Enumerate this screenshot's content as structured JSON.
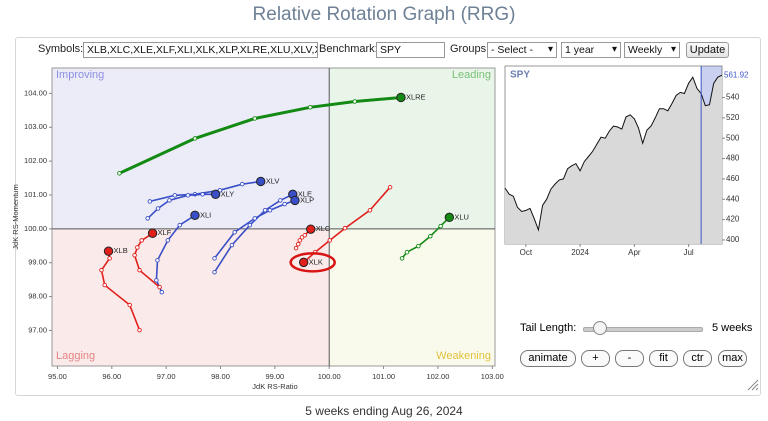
{
  "header": {
    "title": "Relative Rotation Graph (RRG)"
  },
  "controls": {
    "symbols_label": "Symbols:",
    "symbols": "XLB,XLC,XLE,XLF,XLI,XLK,XLP,XLRE,XLU,XLV,XLY",
    "benchmark_label": "Benchmark:",
    "benchmark": "SPY",
    "groups_label": "Groups:",
    "groups": "- Select -",
    "period": "1 year",
    "frequency": "Weekly",
    "update": "Update",
    "tail_length_label": "Tail Length:",
    "tail_length": "5 weeks",
    "buttons": [
      "animate",
      "+",
      "-",
      "fit",
      "ctr",
      "max"
    ]
  },
  "chart_data": [
    {
      "type": "rrg",
      "xlabel": "JdK RS-Ratio",
      "ylabel": "JdK RS-Momentum",
      "xlim": [
        94.9,
        103.05
      ],
      "ylim": [
        95.95,
        104.75
      ],
      "xticks": [
        {
          "value": 95,
          "label": "95.00"
        },
        {
          "value": 96,
          "label": "96.00"
        },
        {
          "value": 97,
          "label": "97.00"
        },
        {
          "value": 98,
          "label": "98.00"
        },
        {
          "value": 99,
          "label": "99.00"
        },
        {
          "value": 100,
          "label": "100.00"
        },
        {
          "value": 101,
          "label": "101.00"
        },
        {
          "value": 102,
          "label": "102.00"
        },
        {
          "value": 103,
          "label": "103.00"
        }
      ],
      "yticks": [
        {
          "value": 97,
          "label": "97.00"
        },
        {
          "value": 98,
          "label": "98.00"
        },
        {
          "value": 99,
          "label": "99.00"
        },
        {
          "value": 100,
          "label": "100.00"
        },
        {
          "value": 101,
          "label": "101.00"
        },
        {
          "value": 102,
          "label": "102.00"
        },
        {
          "value": 103,
          "label": "103.00"
        },
        {
          "value": 104,
          "label": "104.00"
        }
      ],
      "quadrant_center": [
        100,
        100
      ],
      "quadrants": [
        {
          "name": "Improving",
          "color": "#ececf8",
          "label_color": "#8b8fe0"
        },
        {
          "name": "Leading",
          "color": "#eaf5ea",
          "label_color": "#78c078"
        },
        {
          "name": "Lagging",
          "color": "#fbeaea",
          "label_color": "#e28484"
        },
        {
          "name": "Weakening",
          "color": "#fafaec",
          "label_color": "#e2c23c"
        }
      ],
      "series": [
        {
          "name": "XLRE",
          "color": "#138a13",
          "x": [
            96.14,
            97.53,
            98.63,
            99.65,
            100.47,
            101.32
          ],
          "y": [
            101.64,
            102.67,
            103.26,
            103.59,
            103.76,
            103.88
          ]
        },
        {
          "name": "XLU",
          "color": "#138a13",
          "x": [
            101.34,
            101.43,
            101.64,
            101.86,
            102.05,
            102.21
          ],
          "y": [
            99.13,
            99.31,
            99.49,
            99.78,
            100.08,
            100.34
          ]
        },
        {
          "name": "XLV",
          "color": "#3a4fc7",
          "x": [
            96.7,
            97.16,
            97.53,
            97.99,
            98.4,
            98.74
          ],
          "y": [
            100.81,
            100.99,
            101.02,
            101.14,
            101.32,
            101.4
          ]
        },
        {
          "name": "XLY",
          "color": "#3a4fc7",
          "x": [
            96.66,
            96.85,
            97.06,
            97.4,
            97.67,
            97.91
          ],
          "y": [
            100.31,
            100.6,
            100.84,
            100.99,
            101.02,
            101.02
          ]
        },
        {
          "name": "XLI",
          "color": "#3a4fc7",
          "x": [
            96.92,
            96.82,
            96.84,
            97.03,
            97.25,
            97.53
          ],
          "y": [
            98.13,
            98.48,
            99.07,
            99.66,
            100.11,
            100.4
          ]
        },
        {
          "name": "XLE",
          "color": "#3a4fc7",
          "x": [
            97.89,
            98.21,
            98.54,
            98.82,
            99.1,
            99.33
          ],
          "y": [
            98.72,
            99.52,
            100.11,
            100.55,
            100.84,
            101.02
          ]
        },
        {
          "name": "XLP",
          "color": "#3a4fc7",
          "x": [
            97.89,
            98.26,
            98.63,
            98.91,
            99.18,
            99.37
          ],
          "y": [
            99.13,
            99.9,
            100.31,
            100.55,
            100.73,
            100.84
          ]
        },
        {
          "name": "XLB",
          "color": "#e0201b",
          "x": [
            96.51,
            96.33,
            95.87,
            95.81,
            95.96,
            95.94
          ],
          "y": [
            97.01,
            97.75,
            98.34,
            98.78,
            99.13,
            99.34
          ]
        },
        {
          "name": "XLF",
          "color": "#e0201b",
          "x": [
            96.88,
            96.51,
            96.42,
            96.47,
            96.55,
            96.75
          ],
          "y": [
            98.28,
            98.78,
            99.22,
            99.45,
            99.66,
            99.87
          ]
        },
        {
          "name": "XLC",
          "color": "#e0201b",
          "x": [
            99.39,
            99.43,
            99.46,
            99.5,
            99.55,
            99.66
          ],
          "y": [
            99.43,
            99.55,
            99.66,
            99.75,
            99.81,
            99.99
          ]
        },
        {
          "name": "XLK",
          "color": "#e0201b",
          "highlight": true,
          "x": [
            101.12,
            100.75,
            100.29,
            100.01,
            99.74,
            99.53
          ],
          "y": [
            101.23,
            100.55,
            100.02,
            99.66,
            99.31,
            99.01
          ]
        }
      ]
    },
    {
      "type": "line",
      "title": "SPY",
      "color": "#111111",
      "fill": "#d9d9d9",
      "highlight_color": "#3d56c8",
      "ylim": [
        396,
        571
      ],
      "yticks": [
        400,
        420,
        440,
        460,
        480,
        500,
        520,
        540
      ],
      "categories": [
        null,
        null,
        null,
        null,
        null,
        "Oct",
        null,
        null,
        null,
        null,
        null,
        null,
        null,
        null,
        null,
        null,
        null,
        null,
        "2024",
        null,
        null,
        null,
        null,
        null,
        null,
        null,
        null,
        null,
        null,
        null,
        null,
        "Apr",
        null,
        null,
        null,
        null,
        null,
        null,
        null,
        null,
        null,
        null,
        null,
        null,
        "Jul",
        null,
        null,
        null,
        null,
        null,
        null,
        null,
        null
      ],
      "values": [
        451,
        445,
        443,
        432,
        428,
        429,
        431,
        421,
        410,
        434,
        440,
        450,
        455,
        459,
        460,
        470,
        473,
        475,
        468,
        477,
        482,
        487,
        494,
        501,
        500,
        507,
        512,
        511,
        509,
        521,
        523,
        519,
        510,
        495,
        508,
        512,
        520,
        529,
        529,
        527,
        534,
        542,
        545,
        544,
        554,
        560,
        549,
        544,
        532,
        533,
        554,
        560,
        561.92
      ]
    }
  ],
  "footer": "5 weeks ending Aug 26, 2024"
}
